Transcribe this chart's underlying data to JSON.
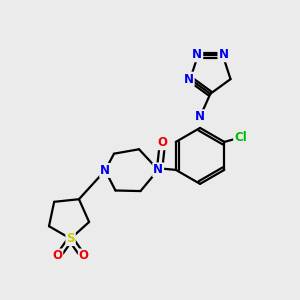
{
  "bg_color": "#ebebeb",
  "atom_colors": {
    "C": "#000000",
    "N": "#0000ee",
    "O": "#ee0000",
    "S": "#cccc00",
    "Cl": "#00bb00"
  },
  "bond_color": "#000000",
  "bond_width": 1.6,
  "font_size_atom": 8.5
}
